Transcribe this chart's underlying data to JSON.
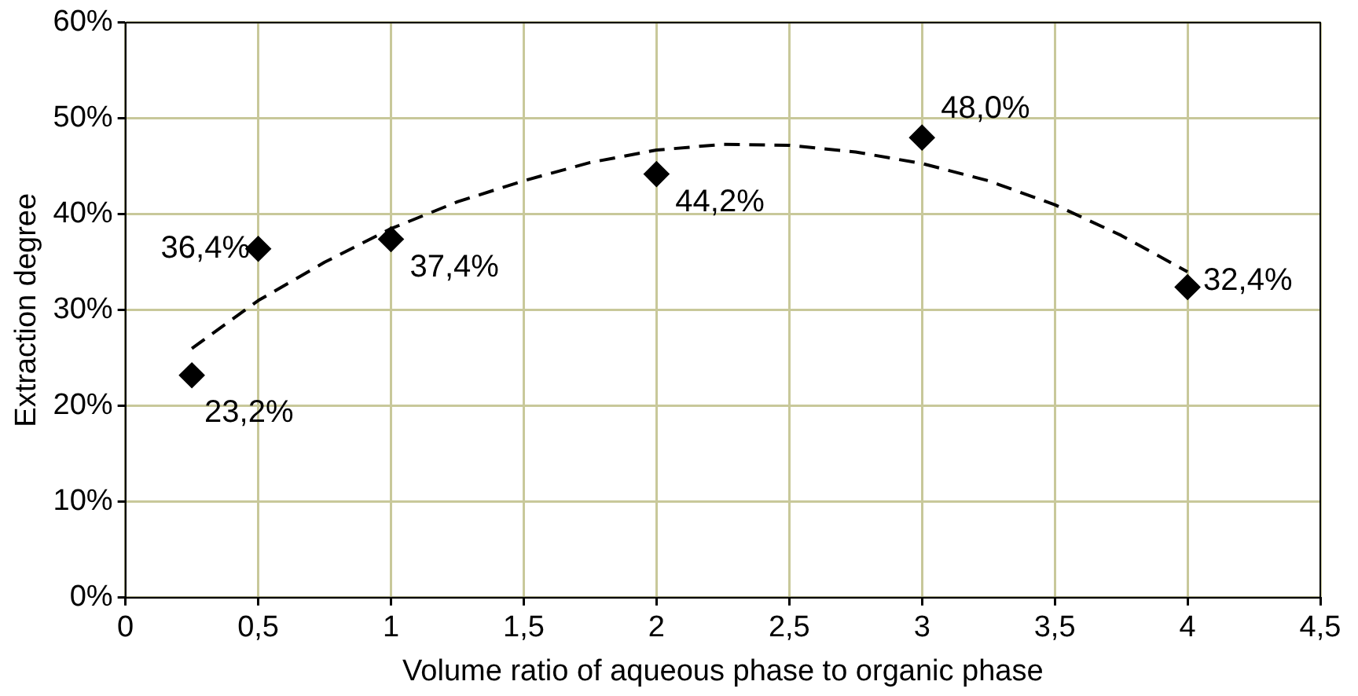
{
  "chart_data": {
    "type": "scatter",
    "xlabel": "Volume ratio of aqueous phase to organic phase",
    "ylabel": "Extraction degree",
    "xlim": [
      0,
      4.5
    ],
    "xticks": [
      0,
      {
        "value": 0.5,
        "label": "0,5"
      },
      1,
      {
        "value": 1.5,
        "label": "1,5"
      },
      2,
      {
        "value": 2.5,
        "label": "2,5"
      },
      3,
      {
        "value": 3.5,
        "label": "3,5"
      },
      4,
      {
        "value": 4.5,
        "label": "4,5"
      }
    ],
    "ylim": [
      0,
      60
    ],
    "yticks": [
      {
        "value": 0,
        "label": "0%"
      },
      {
        "value": 10,
        "label": "10%"
      },
      {
        "value": 20,
        "label": "20%"
      },
      {
        "value": 30,
        "label": "30%"
      },
      {
        "value": 40,
        "label": "40%"
      },
      {
        "value": 50,
        "label": "50%"
      },
      {
        "value": 60,
        "label": "60%"
      }
    ],
    "grid": true,
    "marker": "diamond",
    "series": [
      {
        "type": "scatter",
        "color": "#000000",
        "x": [
          0.25,
          0.5,
          1,
          2,
          3,
          4
        ],
        "values": [
          23.2,
          36.4,
          37.4,
          44.2,
          48.0,
          32.4
        ],
        "value_labels": [
          "23,2%",
          "36,4%",
          "37,4%",
          "44,2%",
          "48,0%",
          "32,4%"
        ]
      },
      {
        "type": "line",
        "color": "#000000",
        "line_style": "dashed",
        "marker": "none",
        "x": [
          0.25,
          0.5,
          0.75,
          1,
          1.25,
          1.5,
          1.75,
          2,
          2.25,
          2.5,
          2.75,
          3,
          3.25,
          3.5,
          3.75,
          4
        ],
        "values": [
          26,
          31,
          35,
          38.5,
          41.3,
          43.5,
          45.4,
          46.7,
          47.3,
          47.2,
          46.5,
          45.3,
          43.5,
          41,
          37.8,
          34
        ]
      }
    ]
  }
}
